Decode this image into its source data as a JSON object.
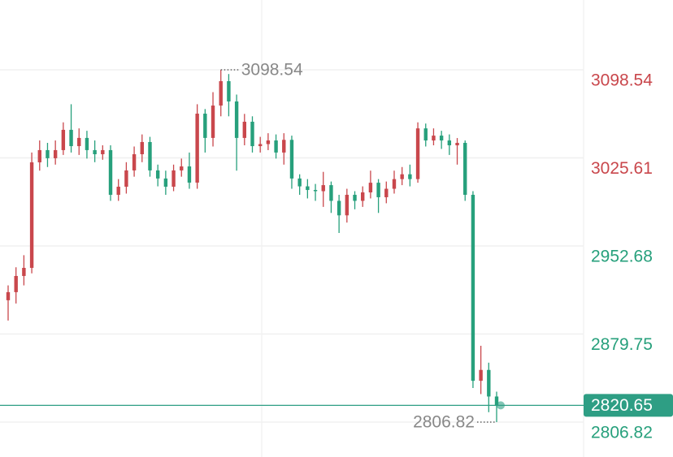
{
  "chart_data": {
    "type": "candlestick",
    "open": [
      2907.7,
      2914.4,
      2927.8,
      2934.5,
      3021.9,
      3032.0,
      3025.3,
      3032.0,
      3048.8,
      3035.3,
      3042.1,
      3032.0,
      3028.6,
      3032.0,
      2995.0,
      3001.7,
      3015.2,
      3028.6,
      3038.7,
      3015.2,
      3008.5,
      3001.7,
      3015.2,
      3018.5,
      3005.1,
      3062.2,
      3042.1,
      3068.9,
      3089.1,
      3072.3,
      3042.1,
      3055.5,
      3035.3,
      3037.0,
      3040.0,
      3030.0,
      3040.5,
      3008.5,
      3002.0,
      2999.0,
      2998.0,
      3003.0,
      2990.0,
      2978.0,
      2995.0,
      2990.0,
      2997.0,
      3005.0,
      2993.0,
      3000.0,
      3008.0,
      3012.0,
      3008.0,
      3050.0,
      3040.0,
      3044.0,
      3040.0,
      3036.0,
      3038.0,
      2995.0,
      2841.0,
      2850.0,
      2828.0
    ],
    "high": [
      2920,
      2935,
      2945,
      3030,
      3040,
      3038,
      3040,
      3055,
      3070,
      3050,
      3048,
      3040,
      3036,
      3036,
      3008,
      3022,
      3035,
      3045,
      3043,
      3020,
      3015,
      3020,
      3025,
      3030,
      3070,
      3066,
      3080,
      3098.54,
      3095,
      3078,
      3062,
      3060,
      3043,
      3046,
      3045,
      3046,
      3044,
      3012,
      3008,
      3004,
      3014,
      3006,
      2995,
      3000,
      2998,
      3002,
      3015,
      3008,
      3006,
      3015,
      3018,
      3020,
      3055,
      3054,
      3050,
      3048,
      3045,
      3042,
      3040,
      2998,
      2870,
      2856,
      2832
    ],
    "low": [
      2890.9,
      2905,
      2920,
      2930,
      3015,
      3018,
      3020,
      3028,
      3030,
      3028,
      3025,
      3022,
      3024,
      2990,
      2990,
      2996,
      3010,
      3022,
      3010,
      3002,
      2995,
      2998,
      3010,
      3000,
      3000,
      3030,
      3035,
      3060,
      3060,
      3015,
      3036,
      3030,
      3030,
      3032,
      3025,
      3020,
      3000,
      2995,
      2992,
      2990,
      2985,
      2980,
      2963.4,
      2972,
      2983,
      2985,
      2992,
      2980,
      2988,
      2996,
      3003,
      3002,
      3005,
      3035,
      3036,
      3033,
      3028,
      3020,
      2990,
      2835,
      2830,
      2815,
      2806.82
    ],
    "close": [
      2914.4,
      2927.8,
      2934.5,
      3021.9,
      3032.0,
      3025.3,
      3032.0,
      3048.8,
      3035.3,
      3042.1,
      3032.0,
      3028.6,
      3032.0,
      2995.0,
      3001.7,
      3015.2,
      3028.6,
      3038.7,
      3015.2,
      3008.5,
      3001.7,
      3015.2,
      3018.5,
      3005.1,
      3062.2,
      3042.1,
      3068.9,
      3089.1,
      3072.3,
      3042.1,
      3055.5,
      3035.3,
      3037.0,
      3040.0,
      3030.0,
      3040.5,
      3008.5,
      3002.0,
      2999.0,
      2998.0,
      3003.0,
      2990.0,
      2978.0,
      2995.0,
      2990.0,
      2997.0,
      3005.0,
      2993.0,
      3000.0,
      3008.0,
      3012.0,
      3008.0,
      3050.0,
      3040.0,
      3044.0,
      3040.0,
      3036.0,
      3038.0,
      2995.0,
      2841.0,
      2850.0,
      2828.0,
      2820.65
    ],
    "up_color": "#c9474c",
    "down_color": "#27a07c",
    "last_color": "#2e9e84",
    "ylim": [
      2777.9,
      3156.3
    ],
    "yticks": [
      3098.54,
      3025.61,
      2952.68,
      2879.75,
      2806.82
    ],
    "ytick_colors": [
      "#c9474c",
      "#c9474c",
      "#27a07c",
      "#27a07c",
      "#27a07c"
    ],
    "grid": true,
    "max_label": 3098.54,
    "min_label": 2806.82,
    "last_price": 2820.65
  }
}
